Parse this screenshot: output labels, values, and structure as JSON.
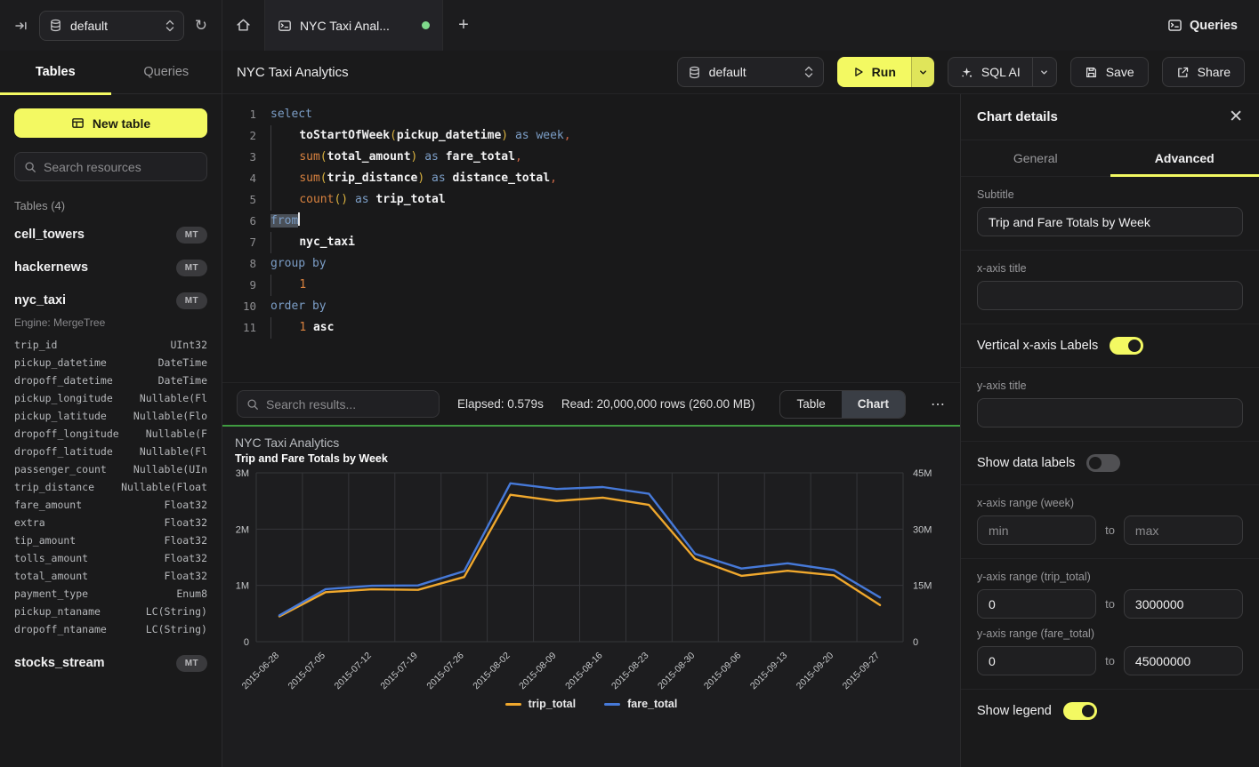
{
  "topbar": {
    "database_selector": {
      "label": "default"
    },
    "active_tab": "NYC Taxi Anal...",
    "queries_label": "Queries"
  },
  "sidebar": {
    "tabs": {
      "tables": "Tables",
      "queries": "Queries"
    },
    "new_table_label": "New table",
    "search_placeholder": "Search resources",
    "section_label": "Tables (4)",
    "tables": [
      {
        "name": "cell_towers",
        "badge": "MT"
      },
      {
        "name": "hackernews",
        "badge": "MT"
      },
      {
        "name": "nyc_taxi",
        "badge": "MT",
        "engine": "Engine: MergeTree"
      },
      {
        "name": "stocks_stream",
        "badge": "MT"
      }
    ],
    "columns": [
      [
        "trip_id",
        "UInt32"
      ],
      [
        "pickup_datetime",
        "DateTime"
      ],
      [
        "dropoff_datetime",
        "DateTime"
      ],
      [
        "pickup_longitude",
        "Nullable(Fl"
      ],
      [
        "pickup_latitude",
        "Nullable(Flo"
      ],
      [
        "dropoff_longitude",
        "Nullable(F"
      ],
      [
        "dropoff_latitude",
        "Nullable(Fl"
      ],
      [
        "passenger_count",
        "Nullable(UIn"
      ],
      [
        "trip_distance",
        "Nullable(Float"
      ],
      [
        "fare_amount",
        "Float32"
      ],
      [
        "extra",
        "Float32"
      ],
      [
        "tip_amount",
        "Float32"
      ],
      [
        "tolls_amount",
        "Float32"
      ],
      [
        "total_amount",
        "Float32"
      ],
      [
        "payment_type",
        "Enum8"
      ],
      [
        "pickup_ntaname",
        "LC(String)"
      ],
      [
        "dropoff_ntaname",
        "LC(String)"
      ]
    ]
  },
  "header": {
    "title": "NYC Taxi Analytics",
    "database_selector": "default",
    "run_label": "Run",
    "sql_ai_label": "SQL AI",
    "save_label": "Save",
    "share_label": "Share"
  },
  "editor": {
    "lines": [
      {
        "n": "1",
        "t": [
          [
            "select",
            "kw"
          ]
        ]
      },
      {
        "n": "2",
        "t": [
          [
            "    ",
            "ind"
          ],
          [
            "toStartOfWeek",
            "fnw"
          ],
          [
            "(",
            "par"
          ],
          [
            "pickup_datetime",
            "id"
          ],
          [
            ")",
            "par"
          ],
          [
            " ",
            ""
          ],
          [
            "as",
            "kw"
          ],
          [
            " ",
            ""
          ],
          [
            "week",
            "kw"
          ],
          [
            ",",
            "comma"
          ]
        ]
      },
      {
        "n": "3",
        "t": [
          [
            "    ",
            "ind"
          ],
          [
            "sum",
            "fn"
          ],
          [
            "(",
            "par"
          ],
          [
            "total_amount",
            "id"
          ],
          [
            ")",
            "par"
          ],
          [
            " ",
            ""
          ],
          [
            "as",
            "kw"
          ],
          [
            " ",
            ""
          ],
          [
            "fare_total",
            "id"
          ],
          [
            ",",
            "comma"
          ]
        ]
      },
      {
        "n": "4",
        "t": [
          [
            "    ",
            "ind"
          ],
          [
            "sum",
            "fn"
          ],
          [
            "(",
            "par"
          ],
          [
            "trip_distance",
            "id"
          ],
          [
            ")",
            "par"
          ],
          [
            " ",
            ""
          ],
          [
            "as",
            "kw"
          ],
          [
            " ",
            ""
          ],
          [
            "distance_total",
            "id"
          ],
          [
            ",",
            "comma"
          ]
        ]
      },
      {
        "n": "5",
        "t": [
          [
            "    ",
            "ind"
          ],
          [
            "count",
            "fn"
          ],
          [
            "()",
            "par"
          ],
          [
            " ",
            ""
          ],
          [
            "as",
            "kw"
          ],
          [
            " ",
            ""
          ],
          [
            "trip_total",
            "id"
          ]
        ]
      },
      {
        "n": "6",
        "t": [
          [
            "from",
            "kw sel"
          ],
          [
            "",
            "caret"
          ]
        ]
      },
      {
        "n": "7",
        "t": [
          [
            "    ",
            "ind"
          ],
          [
            "nyc_taxi",
            "id"
          ]
        ]
      },
      {
        "n": "8",
        "t": [
          [
            "group by",
            "kw"
          ]
        ]
      },
      {
        "n": "9",
        "t": [
          [
            "    ",
            "ind"
          ],
          [
            "1",
            "num"
          ]
        ]
      },
      {
        "n": "10",
        "t": [
          [
            "order by",
            "kw"
          ]
        ]
      },
      {
        "n": "11",
        "t": [
          [
            "    ",
            "ind"
          ],
          [
            "1",
            "num"
          ],
          [
            " ",
            ""
          ],
          [
            "asc",
            "id"
          ]
        ]
      }
    ]
  },
  "results": {
    "search_placeholder": "Search results...",
    "elapsed": "Elapsed: 0.579s",
    "read": "Read: 20,000,000 rows (260.00 MB)",
    "view_table_label": "Table",
    "view_chart_label": "Chart",
    "active_view": "Chart",
    "more_label": "⋯"
  },
  "chart_data": {
    "type": "line",
    "title": "NYC Taxi Analytics",
    "subtitle": "Trip and Fare Totals by Week",
    "categories": [
      "2015-06-28",
      "2015-07-05",
      "2015-07-12",
      "2015-07-19",
      "2015-07-26",
      "2015-08-02",
      "2015-08-09",
      "2015-08-16",
      "2015-08-23",
      "2015-08-30",
      "2015-09-06",
      "2015-09-13",
      "2015-09-20",
      "2015-09-27"
    ],
    "series": [
      {
        "name": "trip_total",
        "axis": "left",
        "color": "#f0a82d",
        "values": [
          450000,
          880000,
          930000,
          920000,
          1150000,
          2610000,
          2500000,
          2560000,
          2430000,
          1470000,
          1170000,
          1260000,
          1180000,
          650000
        ]
      },
      {
        "name": "fare_total",
        "axis": "right",
        "color": "#4679d8",
        "values": [
          7000000,
          14000000,
          14900000,
          15000000,
          18800000,
          42200000,
          40700000,
          41200000,
          39400000,
          23400000,
          19500000,
          20900000,
          19100000,
          11800000
        ]
      }
    ],
    "y_left": {
      "ticks": [
        "0",
        "1M",
        "2M",
        "3M"
      ],
      "min": 0,
      "max": 3000000
    },
    "y_right": {
      "ticks": [
        "0",
        "15M",
        "30M",
        "45M"
      ],
      "min": 0,
      "max": 45000000
    },
    "grid": true,
    "x_labels_rotated": true,
    "legend_position": "bottom"
  },
  "right_panel": {
    "title": "Chart details",
    "tabs": {
      "general": "General",
      "advanced": "Advanced"
    },
    "active_tab": "Advanced",
    "close_label": "✕",
    "fields": {
      "subtitle_label": "Subtitle",
      "subtitle_value": "Trip and Fare Totals by Week",
      "x_axis_title_label": "x-axis title",
      "x_axis_title_value": "",
      "vertical_labels_label": "Vertical x-axis Labels",
      "vertical_labels_on": true,
      "y_axis_title_label": "y-axis title",
      "y_axis_title_value": "",
      "show_data_labels_label": "Show data labels",
      "show_data_labels_on": false,
      "x_range_label": "x-axis range (week)",
      "x_min_placeholder": "min",
      "x_max_placeholder": "max",
      "to_label": "to",
      "y_range_trip_label": "y-axis range (trip_total)",
      "y_trip_min": "0",
      "y_trip_max": "3000000",
      "y_range_fare_label": "y-axis range (fare_total)",
      "y_fare_min": "0",
      "y_fare_max": "45000000",
      "show_legend_label": "Show legend",
      "show_legend_on": true
    }
  }
}
